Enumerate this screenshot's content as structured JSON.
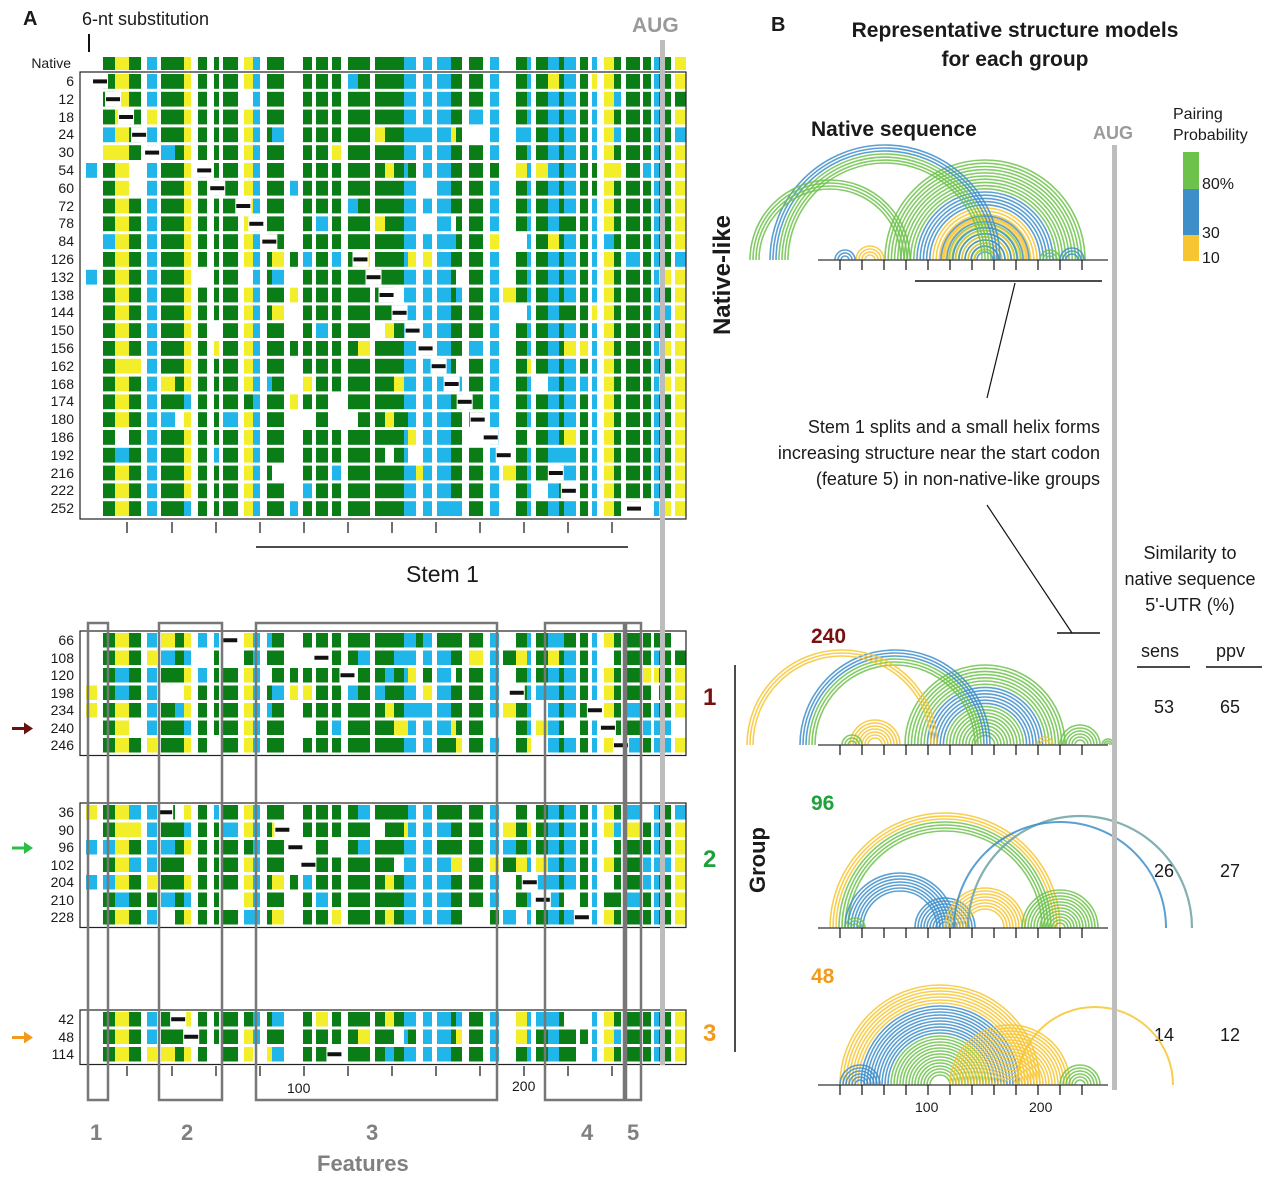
{
  "panelA": {
    "label": "A",
    "substitution_label": "6-nt substitution",
    "aug_label": "AUG",
    "native_label": "Native",
    "native_like_rows": [
      "6",
      "12",
      "18",
      "24",
      "30",
      "54",
      "60",
      "72",
      "78",
      "84",
      "126",
      "132",
      "138",
      "144",
      "150",
      "156",
      "162",
      "168",
      "174",
      "180",
      "186",
      "192",
      "216",
      "222",
      "252"
    ],
    "native_like_title": "Native-like",
    "stem_label": "Stem 1",
    "groups": [
      {
        "num": "1",
        "color": "#7a1010",
        "rows": [
          "66",
          "108",
          "120",
          "198",
          "234",
          "240",
          "246"
        ],
        "arrow_row": "240",
        "arrow_color": "#6b0f0f"
      },
      {
        "num": "2",
        "color": "#1ea03a",
        "rows": [
          "36",
          "90",
          "96",
          "102",
          "204",
          "210",
          "228"
        ],
        "arrow_row": "96",
        "arrow_color": "#27c044"
      },
      {
        "num": "3",
        "color": "#f39a1c",
        "rows": [
          "42",
          "48",
          "114"
        ],
        "arrow_row": "48",
        "arrow_color": "#f39a1c"
      }
    ],
    "group_axis_label": "Group",
    "axis_ticks": [
      "100",
      "200"
    ],
    "features": [
      "1",
      "2",
      "3",
      "4",
      "5"
    ],
    "features_label": "Features"
  },
  "panelB": {
    "label": "B",
    "title_line1": "Representative structure models",
    "title_line2": "for each group",
    "native_sequence_label": "Native sequence",
    "aug_label": "AUG",
    "legend": {
      "title_line1": "Pairing",
      "title_line2": "Probability",
      "ticks": [
        "80%",
        "30",
        "10"
      ],
      "colors": {
        "high": "#6cc24a",
        "mid": "#3d8ec9",
        "low": "#f7c531"
      }
    },
    "annotation_lines": [
      "Stem 1 splits and a small helix forms",
      "increasing structure near the start codon",
      "(feature 5) in non-native-like groups"
    ],
    "similarity_lines": [
      "Similarity to",
      "native sequence",
      "5'-UTR (%)"
    ],
    "col_headers": [
      "sens",
      "ppv"
    ],
    "models": [
      {
        "label": "240",
        "color": "#7a1010",
        "sens": "53",
        "ppv": "65"
      },
      {
        "label": "96",
        "color": "#1ea03a",
        "sens": "26",
        "ppv": "27"
      },
      {
        "label": "48",
        "color": "#f39a1c",
        "sens": "14",
        "ppv": "12"
      }
    ],
    "axis_ticks": [
      "100",
      "200"
    ]
  },
  "colors": {
    "green": "#0a7d16",
    "blue": "#20b6ea",
    "yellow": "#f2ee2a"
  }
}
